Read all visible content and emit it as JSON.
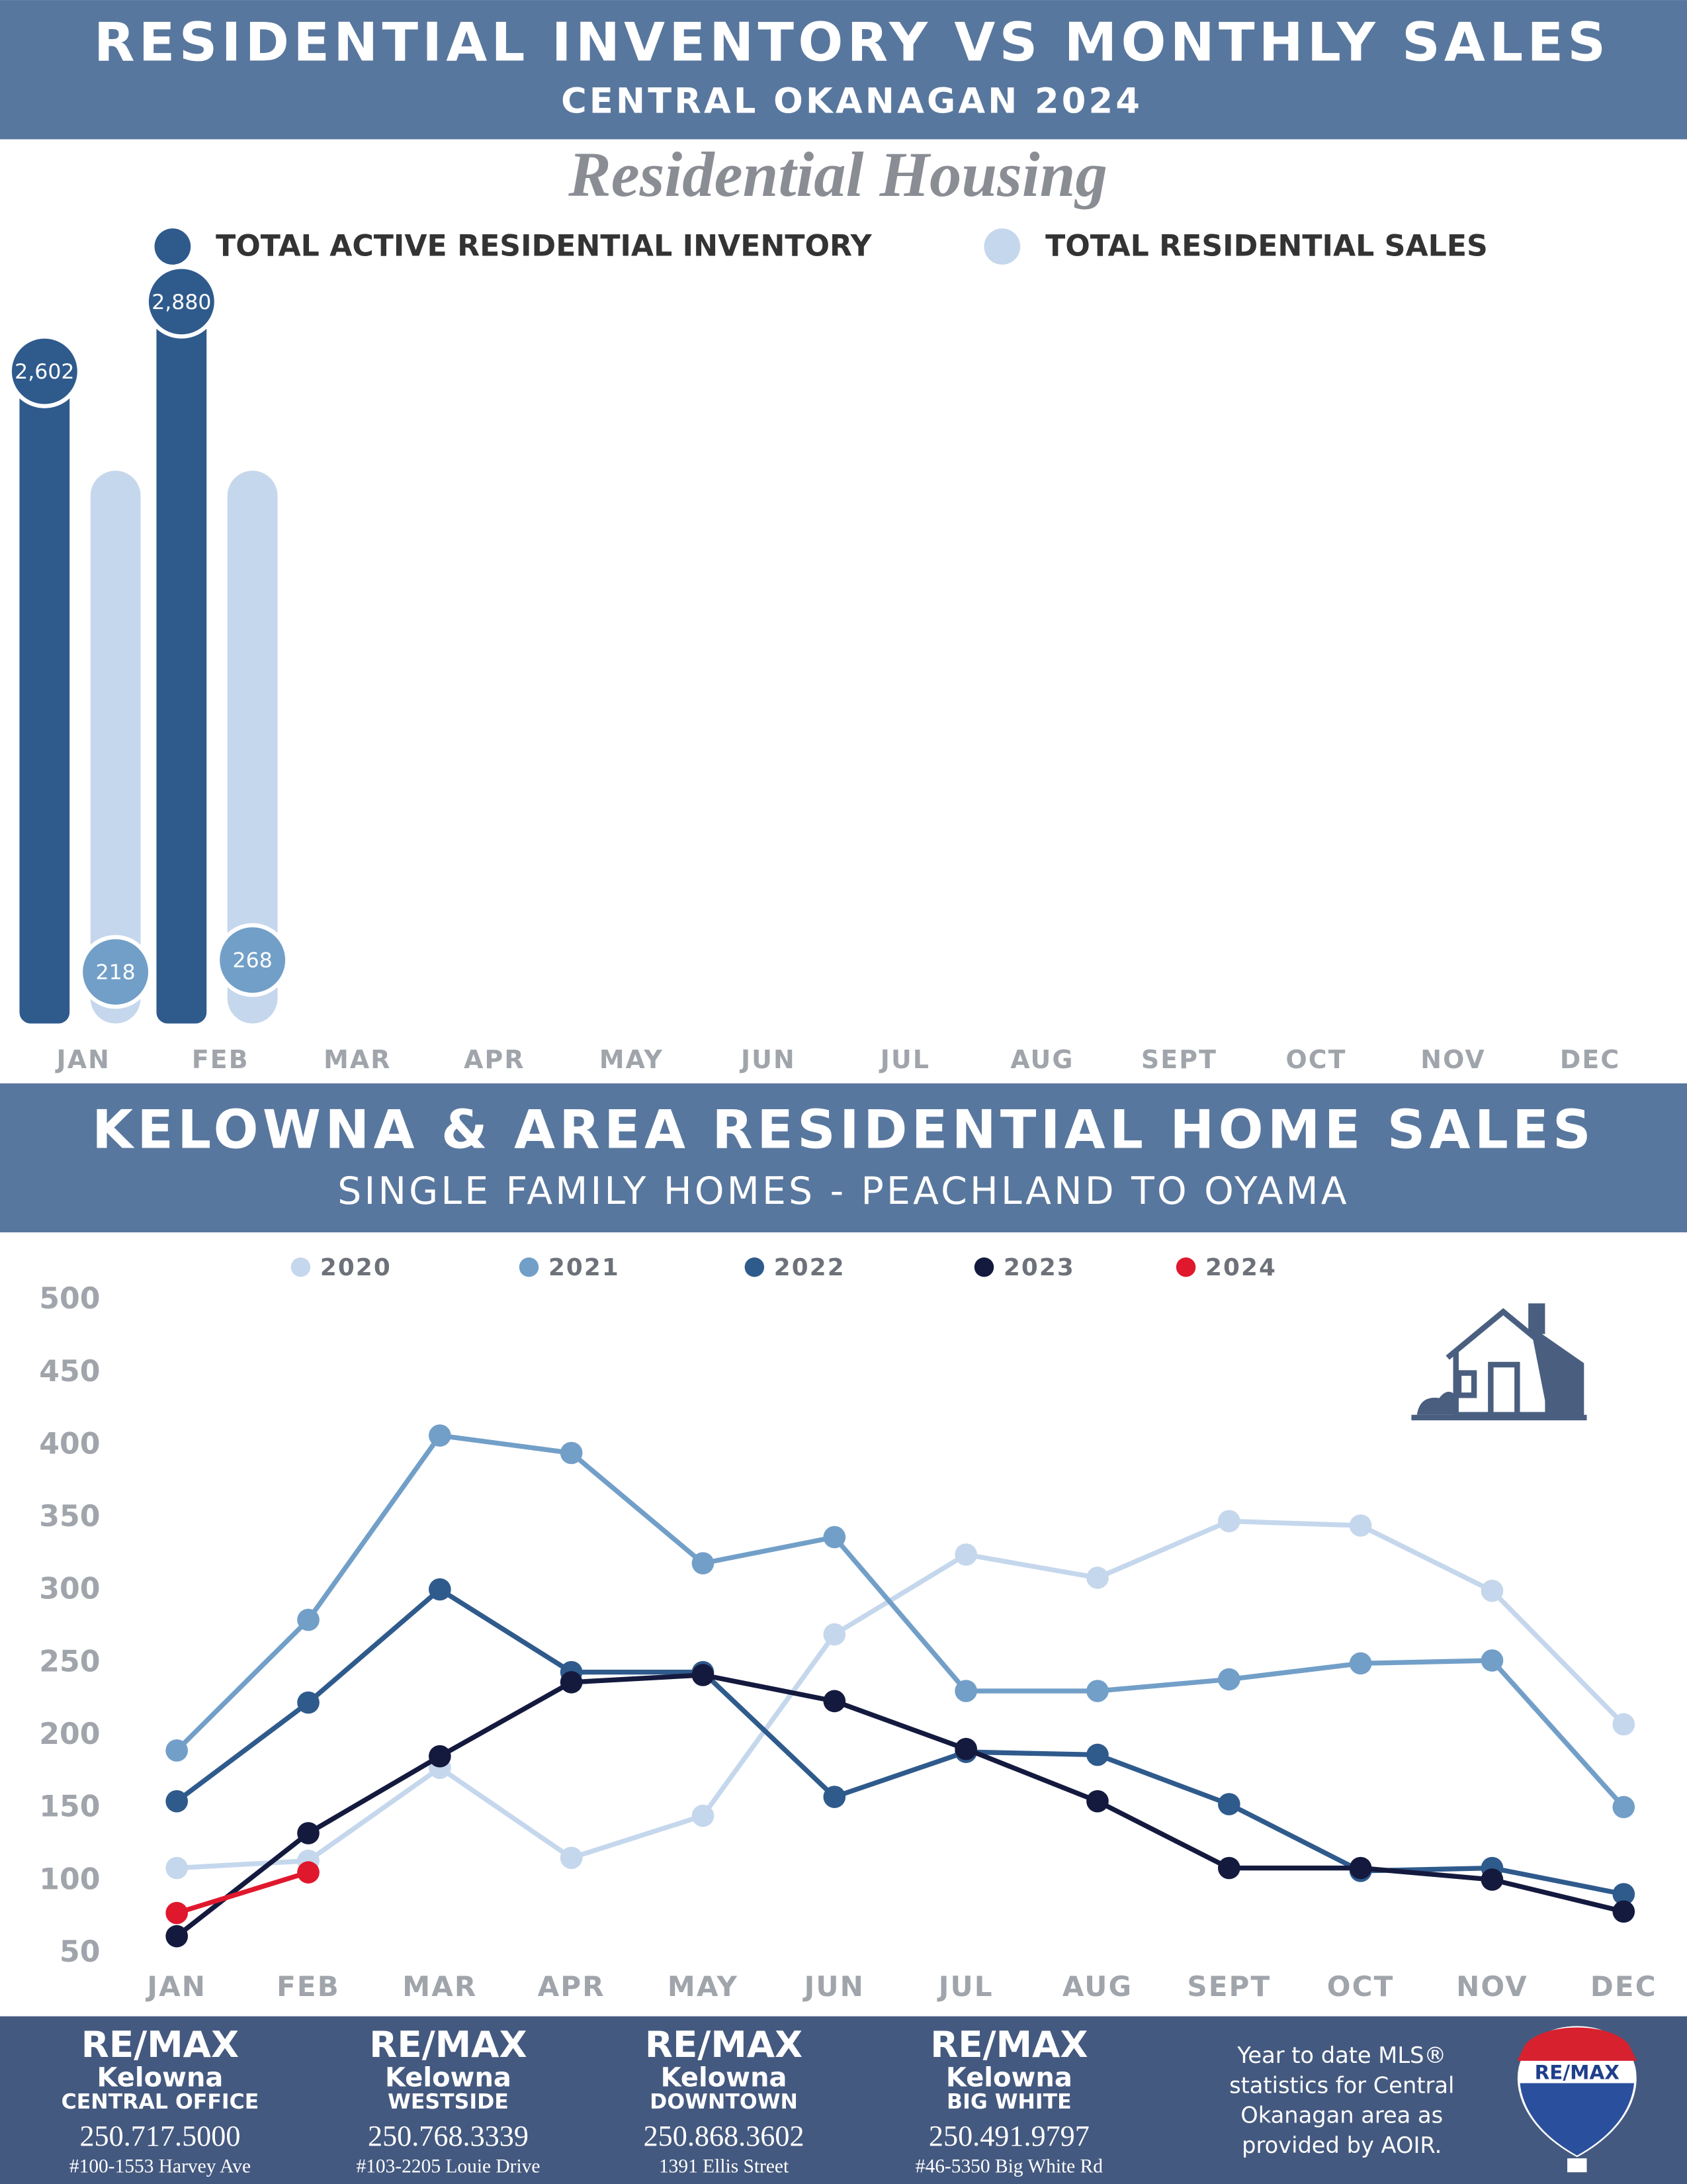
{
  "chart_data": [
    {
      "type": "bar",
      "title": "RESIDENTIAL INVENTORY VS MONTHLY SALES",
      "subtitle": "CENTRAL OKANAGAN 2024",
      "heading": "Residential Housing",
      "categories": [
        "JAN",
        "FEB",
        "MAR",
        "APR",
        "MAY",
        "JUN",
        "JUL",
        "AUG",
        "SEPT",
        "OCT",
        "NOV",
        "DEC"
      ],
      "series": [
        {
          "name": "TOTAL ACTIVE RESIDENTIAL INVENTORY",
          "color": "#2f5a8c",
          "values": [
            2602,
            2880,
            null,
            null,
            null,
            null,
            null,
            null,
            null,
            null,
            null,
            null
          ],
          "value_labels": [
            "2,602",
            "2,880",
            null,
            null,
            null,
            null,
            null,
            null,
            null,
            null,
            null,
            null
          ]
        },
        {
          "name": "TOTAL RESIDENTIAL SALES",
          "color": "#c5d7ec",
          "values": [
            218,
            268,
            null,
            null,
            null,
            null,
            null,
            null,
            null,
            null,
            null,
            null
          ]
        }
      ]
    },
    {
      "type": "line",
      "title": "KELOWNA & AREA RESIDENTIAL HOME SALES",
      "subtitle": "SINGLE FAMILY HOMES - PEACHLAND TO OYAMA",
      "categories": [
        "JAN",
        "FEB",
        "MAR",
        "APR",
        "MAY",
        "JUN",
        "JUL",
        "AUG",
        "SEPT",
        "OCT",
        "NOV",
        "DEC"
      ],
      "ylim": [
        50,
        500
      ],
      "yticks": [
        50,
        100,
        150,
        200,
        250,
        300,
        350,
        400,
        450,
        500
      ],
      "grid": false,
      "series": [
        {
          "name": "2020",
          "color": "#c5d7ec",
          "values": [
            109,
            114,
            178,
            116,
            145,
            270,
            325,
            309,
            348,
            345,
            300,
            208
          ]
        },
        {
          "name": "2021",
          "color": "#729fc8",
          "values": [
            190,
            280,
            407,
            395,
            319,
            337,
            231,
            231,
            239,
            250,
            252,
            151
          ]
        },
        {
          "name": "2022",
          "color": "#2f5a8c",
          "values": [
            155,
            223,
            301,
            244,
            244,
            158,
            189,
            187,
            153,
            107,
            109,
            91
          ]
        },
        {
          "name": "2023",
          "color": "#141a3e",
          "values": [
            62,
            133,
            186,
            237,
            242,
            224,
            191,
            155,
            109,
            109,
            101,
            79
          ]
        },
        {
          "name": "2024",
          "color": "#e0182d",
          "values": [
            78,
            106,
            null,
            null,
            null,
            null,
            null,
            null,
            null,
            null,
            null,
            null
          ]
        }
      ]
    }
  ],
  "footer": {
    "offices": [
      {
        "brand": "RE/MAX",
        "city": "Kelowna",
        "office": "CENTRAL OFFICE",
        "phone": "250.717.5000",
        "address": "#100-1553 Harvey Ave"
      },
      {
        "brand": "RE/MAX",
        "city": "Kelowna",
        "office": "WESTSIDE",
        "phone": "250.768.3339",
        "address": "#103-2205 Louie Drive"
      },
      {
        "brand": "RE/MAX",
        "city": "Kelowna",
        "office": "DOWNTOWN",
        "phone": "250.868.3602",
        "address": "1391 Ellis Street"
      },
      {
        "brand": "RE/MAX",
        "city": "Kelowna",
        "office": "BIG WHITE",
        "phone": "250.491.9797",
        "address": "#46-5350 Big White Rd"
      }
    ],
    "note": [
      "Year to date MLS®",
      "statistics for Central",
      "Okanagan area as",
      "provided by AOIR."
    ],
    "logo": "RE/MAX"
  }
}
